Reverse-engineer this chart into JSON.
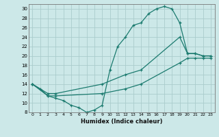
{
  "xlabel": "Humidex (Indice chaleur)",
  "xlim": [
    -0.5,
    23.5
  ],
  "ylim": [
    8,
    31
  ],
  "yticks": [
    8,
    10,
    12,
    14,
    16,
    18,
    20,
    22,
    24,
    26,
    28,
    30
  ],
  "xticks": [
    0,
    1,
    2,
    3,
    4,
    5,
    6,
    7,
    8,
    9,
    10,
    11,
    12,
    13,
    14,
    15,
    16,
    17,
    18,
    19,
    20,
    21,
    22,
    23
  ],
  "line_color": "#1a7a6e",
  "bg_color": "#cce8e8",
  "grid_color": "#aacccc",
  "curve1_x": [
    0,
    1,
    2,
    3,
    4,
    5,
    6,
    7,
    8,
    9,
    10,
    11,
    12,
    13,
    14,
    15,
    16,
    17,
    18,
    19,
    20,
    21,
    22,
    23
  ],
  "curve1_y": [
    14,
    13,
    11.5,
    11,
    10.5,
    9.5,
    9,
    8,
    8.5,
    9.5,
    17,
    22,
    24,
    26.5,
    27,
    29,
    30,
    30.5,
    30,
    27,
    20.5,
    20.5,
    20,
    20
  ],
  "curve2_x": [
    0,
    2,
    3,
    9,
    12,
    14,
    19,
    20,
    21,
    22,
    23
  ],
  "curve2_y": [
    14,
    12,
    12,
    14,
    16,
    17,
    24,
    20.5,
    20.5,
    20,
    20
  ],
  "curve3_x": [
    0,
    2,
    3,
    9,
    12,
    14,
    19,
    20,
    21,
    22,
    23
  ],
  "curve3_y": [
    14,
    11.5,
    11.5,
    12,
    13,
    14,
    18.5,
    19.5,
    19.5,
    19.5,
    19.5
  ]
}
